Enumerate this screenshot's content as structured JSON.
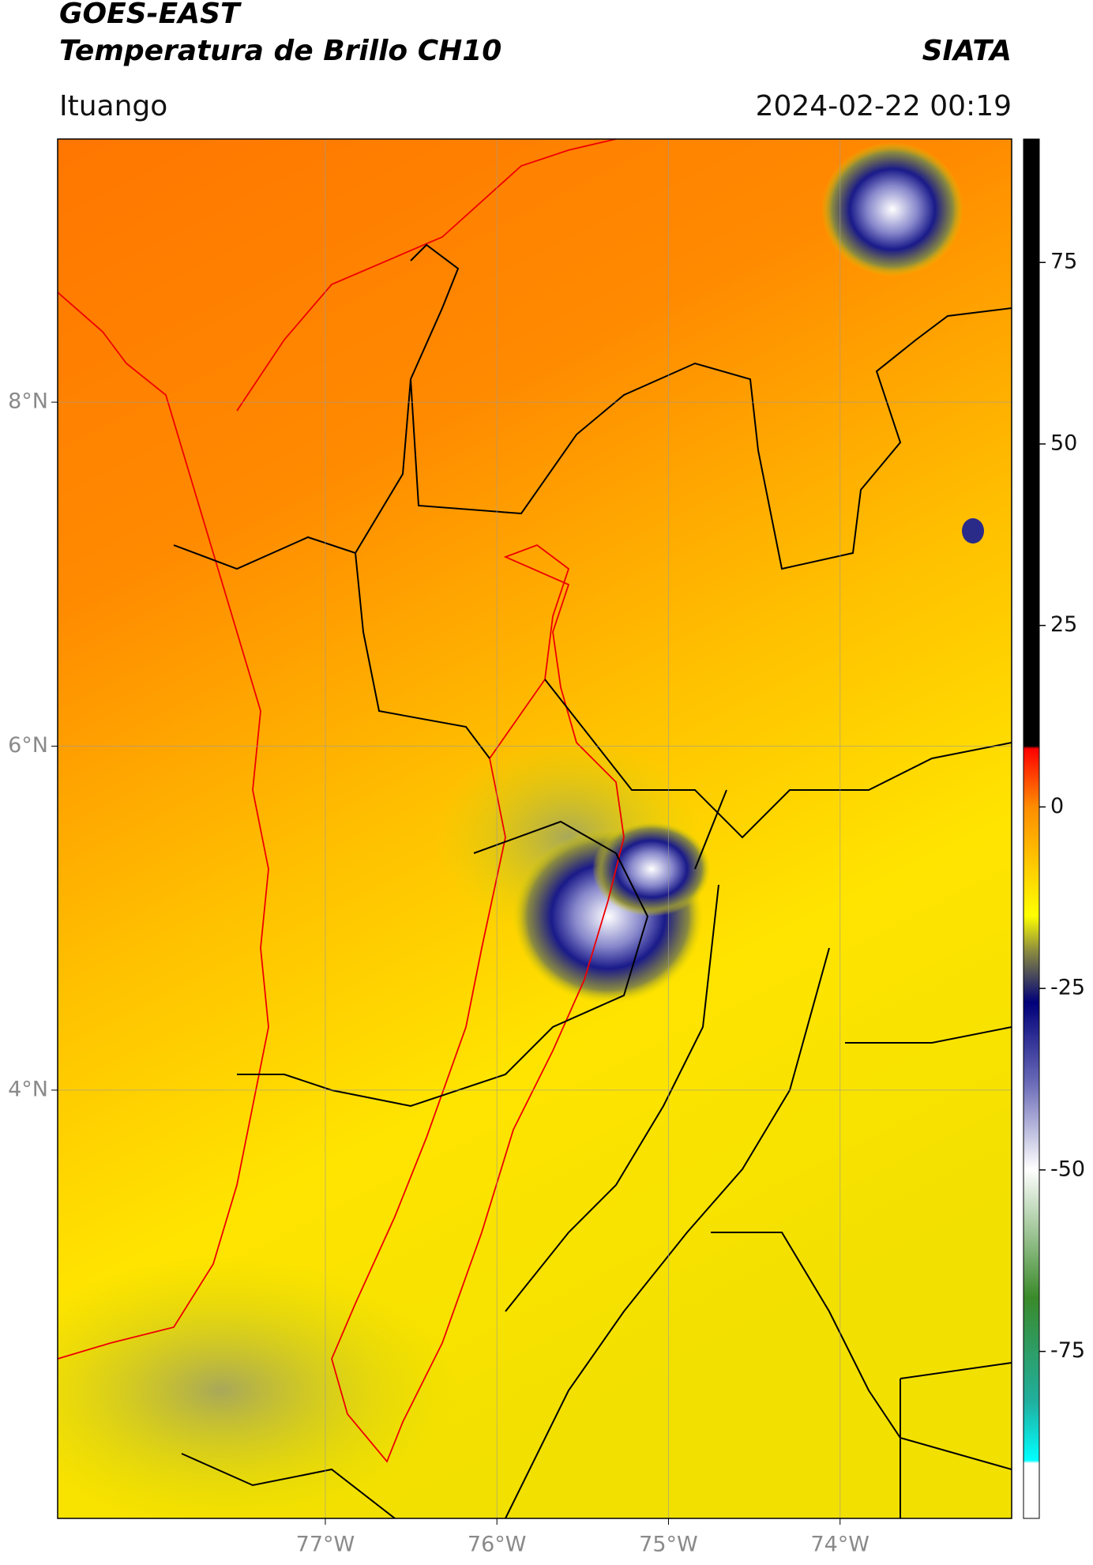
{
  "header": {
    "title_line1": "GOES-EAST",
    "title_line2": "Temperatura de Brillo CH10",
    "organization": "SIATA",
    "place": "Ituango",
    "datetime": "2024-02-22 00:19"
  },
  "map": {
    "xlim": [
      -78.56,
      -73.0
    ],
    "ylim": [
      1.51,
      9.53
    ],
    "lat_ticks": [
      {
        "value": 8,
        "label": "8°N"
      },
      {
        "value": 6,
        "label": "6°N"
      },
      {
        "value": 4,
        "label": "4°N"
      }
    ],
    "lon_ticks": [
      {
        "value": -77,
        "label": "77°W"
      },
      {
        "value": -76,
        "label": "76°W"
      },
      {
        "value": -75,
        "label": "75°W"
      },
      {
        "value": -74,
        "label": "74°W"
      }
    ]
  },
  "colorbar": {
    "range": [
      -98,
      92
    ],
    "ticks": [
      75,
      50,
      25,
      0,
      -25,
      -50,
      -75
    ]
  }
}
